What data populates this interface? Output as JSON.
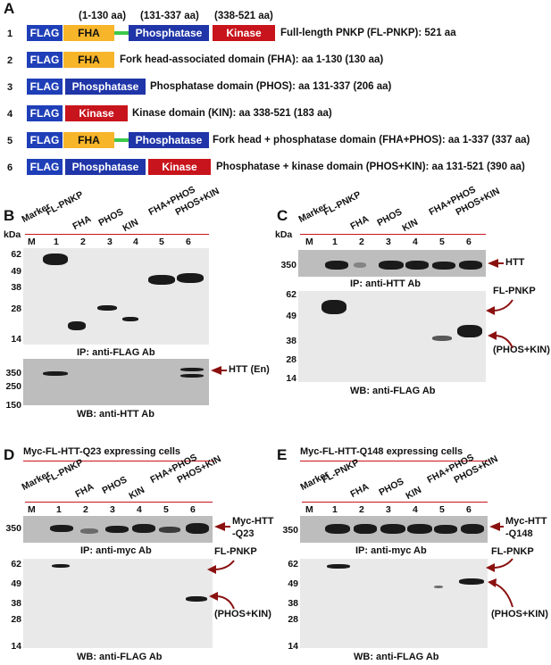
{
  "panelA": {
    "letter": "A",
    "ranges": [
      "(1-130 aa)",
      "(131-337 aa)",
      "(338-521 aa)"
    ],
    "rows": [
      {
        "num": "1",
        "boxes": [
          "FLAG",
          "FHA",
          "Phosphatase",
          "Kinase"
        ],
        "desc": "Full-length PNKP (FL-PNKP): 521 aa"
      },
      {
        "num": "2",
        "boxes": [
          "FLAG",
          "FHA"
        ],
        "desc": "Fork head-associated domain (FHA): aa 1-130 (130 aa)"
      },
      {
        "num": "3",
        "boxes": [
          "FLAG",
          "Phosphatase"
        ],
        "desc": "Phosphatase domain (PHOS): aa 131-337 (206 aa)"
      },
      {
        "num": "4",
        "boxes": [
          "FLAG",
          "Kinase"
        ],
        "desc": "Kinase domain (KIN): aa 338-521 (183 aa)"
      },
      {
        "num": "5",
        "boxes": [
          "FLAG",
          "FHA",
          "Phosphatase"
        ],
        "desc": "Fork head + phosphatase domain (FHA+PHOS): aa 1-337 (337 aa)"
      },
      {
        "num": "6",
        "boxes": [
          "FLAG",
          "Phosphatase",
          "Kinase"
        ],
        "desc": "Phosphatase + kinase domain (PHOS+KIN): aa 131-521 (390 aa)"
      }
    ]
  },
  "lanes": {
    "headers": [
      "Marker",
      "FL-PNKP",
      "FHA",
      "PHOS",
      "KIN",
      "FHA+PHOS",
      "PHOS+KIN"
    ],
    "numbers": [
      "M",
      "1",
      "2",
      "3",
      "4",
      "5",
      "6"
    ],
    "kda": "kDa"
  },
  "panelB": {
    "letter": "B",
    "mw_top": [
      "62",
      "49",
      "38",
      "28",
      "14"
    ],
    "cap_top": "IP: anti-FLAG Ab",
    "mw_bottom": [
      "350",
      "250",
      "150"
    ],
    "arrow_label": "HTT (En)",
    "cap_bottom": "WB: anti-HTT Ab"
  },
  "panelC": {
    "letter": "C",
    "mw_top": [
      "350"
    ],
    "arrow_top": "HTT",
    "cap_top": "IP: anti-HTT Ab",
    "mw_bottom": [
      "62",
      "49",
      "38",
      "28",
      "14"
    ],
    "label_fl": "FL-PNKP",
    "label_pk": "(PHOS+KIN)",
    "cap_bottom": "WB: anti-FLAG Ab"
  },
  "panelD": {
    "letter": "D",
    "title": "Myc-FL-HTT-Q23 expressing cells",
    "mw_top": [
      "350"
    ],
    "arrow_top": [
      "Myc-HTT",
      "-Q23"
    ],
    "cap_top": "IP: anti-myc Ab",
    "mw_bottom": [
      "62",
      "49",
      "38",
      "28",
      "14"
    ],
    "label_fl": "FL-PNKP",
    "label_pk": "(PHOS+KIN)",
    "cap_bottom": "WB: anti-FLAG Ab"
  },
  "panelE": {
    "letter": "E",
    "title": "Myc-FL-HTT-Q148 expressing cells",
    "mw_top": [
      "350"
    ],
    "arrow_top": [
      "Myc-HTT",
      "-Q148"
    ],
    "cap_top": "IP: anti-myc Ab",
    "mw_bottom": [
      "62",
      "49",
      "38",
      "28",
      "14"
    ],
    "label_fl": "FL-PNKP",
    "label_pk": "(PHOS+KIN)",
    "cap_bottom": "WB: anti-FLAG Ab"
  }
}
